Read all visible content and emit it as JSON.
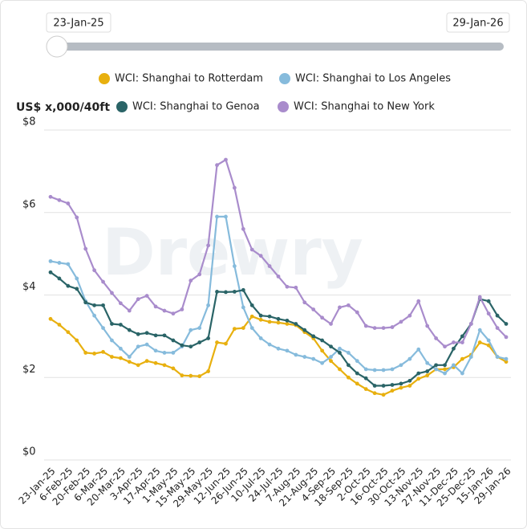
{
  "slider": {
    "start": "23-Jan-25",
    "end": "29-Jan-26"
  },
  "watermark": "Drewry",
  "chart_data": {
    "type": "line",
    "y_axis_label": "US$ x,000/40ft",
    "categories": [
      "23-Jan-25",
      null,
      "6-Feb-25",
      null,
      "20-Feb-25",
      null,
      "6-Mar-25",
      null,
      "20-Mar-25",
      null,
      "3-Apr-25",
      null,
      "17-Apr-25",
      null,
      "1-May-25",
      null,
      "15-May-25",
      null,
      "29-May-25",
      null,
      "12-Jun-25",
      null,
      "26-Jun-25",
      null,
      "10-Jul-25",
      null,
      "24-Jul-25",
      null,
      "7-Aug-25",
      null,
      "21-Aug-25",
      null,
      "4-Sep-25",
      null,
      "18-Sep-25",
      null,
      "2-Oct-25",
      null,
      "16-Oct-25",
      null,
      "30-Oct-25",
      null,
      "13-Nov-25",
      null,
      "27-Nov-25",
      null,
      "11-Dec-25",
      null,
      "25-Dec-25",
      null,
      "15-Jan-26",
      null,
      "29-Jan-26"
    ],
    "series": [
      {
        "name": "WCI: Shanghai to Rotterdam",
        "color": "#e8b00f",
        "values": [
          3.42,
          3.28,
          3.1,
          2.9,
          2.6,
          2.58,
          2.62,
          2.5,
          2.47,
          2.38,
          2.3,
          2.4,
          2.35,
          2.3,
          2.22,
          2.05,
          2.04,
          2.03,
          2.15,
          2.85,
          2.82,
          3.18,
          3.2,
          3.48,
          3.4,
          3.35,
          3.33,
          3.3,
          3.27,
          3.1,
          2.95,
          2.65,
          2.4,
          2.2,
          2.0,
          1.85,
          1.72,
          1.62,
          1.58,
          1.68,
          1.75,
          1.8,
          1.97,
          2.05,
          2.2,
          2.2,
          2.25,
          2.45,
          2.55,
          2.85,
          2.78,
          2.5,
          2.38
        ]
      },
      {
        "name": "WCI: Shanghai to Los Angeles",
        "color": "#86bbdc",
        "values": [
          4.82,
          4.78,
          4.75,
          4.4,
          3.85,
          3.5,
          3.2,
          2.9,
          2.7,
          2.5,
          2.75,
          2.8,
          2.65,
          2.6,
          2.6,
          2.75,
          3.15,
          3.2,
          3.75,
          5.9,
          5.9,
          4.7,
          3.7,
          3.2,
          2.95,
          2.8,
          2.7,
          2.65,
          2.55,
          2.5,
          2.45,
          2.35,
          2.5,
          2.7,
          2.6,
          2.4,
          2.2,
          2.18,
          2.18,
          2.2,
          2.3,
          2.45,
          2.68,
          2.35,
          2.2,
          2.1,
          2.3,
          2.1,
          2.5,
          3.15,
          2.9,
          2.5,
          2.45
        ]
      },
      {
        "name": "WCI: Shanghai to Genoa",
        "color": "#2a6467",
        "values": [
          4.55,
          4.4,
          4.22,
          4.15,
          3.82,
          3.75,
          3.75,
          3.3,
          3.28,
          3.15,
          3.05,
          3.08,
          3.02,
          3.02,
          2.9,
          2.78,
          2.75,
          2.85,
          2.95,
          4.08,
          4.07,
          4.08,
          4.12,
          3.75,
          3.5,
          3.48,
          3.42,
          3.38,
          3.3,
          3.15,
          3.0,
          2.9,
          2.75,
          2.6,
          2.3,
          2.1,
          1.98,
          1.8,
          1.8,
          1.82,
          1.85,
          1.92,
          2.1,
          2.15,
          2.3,
          2.3,
          2.7,
          3.0,
          3.3,
          3.9,
          3.85,
          3.5,
          3.3
        ]
      },
      {
        "name": "WCI: Shanghai to New York",
        "color": "#a98ccc",
        "values": [
          6.38,
          6.3,
          6.22,
          5.88,
          5.12,
          4.6,
          4.32,
          4.05,
          3.8,
          3.62,
          3.9,
          3.98,
          3.72,
          3.62,
          3.55,
          3.65,
          4.35,
          4.5,
          5.2,
          7.15,
          7.28,
          6.6,
          5.6,
          5.1,
          4.95,
          4.7,
          4.45,
          4.2,
          4.18,
          3.82,
          3.65,
          3.45,
          3.3,
          3.7,
          3.75,
          3.58,
          3.25,
          3.2,
          3.2,
          3.22,
          3.35,
          3.5,
          3.85,
          3.25,
          2.95,
          2.75,
          2.85,
          2.85,
          3.3,
          3.95,
          3.55,
          3.2,
          2.98
        ]
      }
    ],
    "ylim": [
      0,
      8
    ],
    "yticks": [
      {
        "value": 0,
        "label": "$0"
      },
      {
        "value": 2,
        "label": "$2"
      },
      {
        "value": 4,
        "label": "$4"
      },
      {
        "value": 6,
        "label": "$6"
      },
      {
        "value": 8,
        "label": "$8"
      }
    ],
    "grid": true
  }
}
